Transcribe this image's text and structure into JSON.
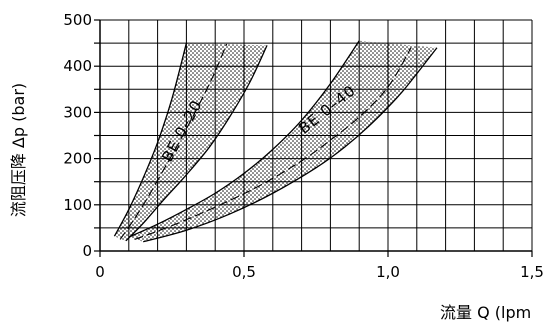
{
  "chart_data": {
    "type": "area",
    "title": "",
    "xlabel": "流量 Q (lpm",
    "ylabel": "流阻压降 Δp (bar)",
    "xlim": [
      0,
      1.5
    ],
    "ylim": [
      0,
      500
    ],
    "x_ticks": [
      0,
      0.1,
      0.2,
      0.3,
      0.4,
      0.5,
      0.6,
      0.7,
      0.8,
      0.9,
      1.0,
      1.1,
      1.2,
      1.3,
      1.4,
      1.5
    ],
    "x_tick_labels": [
      {
        "value": 0,
        "label": "0"
      },
      {
        "value": 0.5,
        "label": "0,5"
      },
      {
        "value": 1.0,
        "label": "1,0"
      },
      {
        "value": 1.5,
        "label": "1,5"
      }
    ],
    "y_ticks": [
      0,
      50,
      100,
      150,
      200,
      250,
      300,
      350,
      400,
      450,
      500
    ],
    "y_tick_labels": [
      {
        "value": 0,
        "label": "0"
      },
      {
        "value": 100,
        "label": "100"
      },
      {
        "value": 200,
        "label": "200"
      },
      {
        "value": 300,
        "label": "300"
      },
      {
        "value": 400,
        "label": "400"
      },
      {
        "value": 500,
        "label": "500"
      }
    ],
    "grid": true,
    "series": [
      {
        "name": "BE 0–20",
        "label_anchor": {
          "x": 0.3,
          "y": 255
        },
        "upper": {
          "x": [
            0.05,
            0.1,
            0.15,
            0.2,
            0.25,
            0.3
          ],
          "y": [
            32,
            90,
            158,
            235,
            330,
            450
          ]
        },
        "middle": {
          "x": [
            0.07,
            0.12,
            0.17,
            0.22,
            0.27,
            0.33,
            0.39,
            0.44
          ],
          "y": [
            25,
            70,
            120,
            175,
            230,
            300,
            375,
            448
          ]
        },
        "lower": {
          "x": [
            0.09,
            0.15,
            0.22,
            0.3,
            0.38,
            0.45,
            0.52,
            0.58
          ],
          "y": [
            22,
            60,
            110,
            165,
            225,
            290,
            365,
            445
          ]
        }
      },
      {
        "name": "BE 0–40",
        "label_anchor": {
          "x": 0.8,
          "y": 298
        },
        "upper": {
          "x": [
            0.1,
            0.2,
            0.3,
            0.4,
            0.5,
            0.6,
            0.7,
            0.8,
            0.9
          ],
          "y": [
            30,
            58,
            90,
            125,
            168,
            220,
            283,
            362,
            455
          ]
        },
        "middle": {
          "x": [
            0.12,
            0.25,
            0.4,
            0.55,
            0.7,
            0.8,
            0.9,
            1.0,
            1.08
          ],
          "y": [
            25,
            55,
            95,
            140,
            195,
            240,
            290,
            355,
            440
          ]
        },
        "lower": {
          "x": [
            0.15,
            0.3,
            0.45,
            0.6,
            0.75,
            0.85,
            0.95,
            1.05,
            1.17
          ],
          "y": [
            20,
            45,
            80,
            125,
            180,
            225,
            280,
            345,
            440
          ]
        }
      }
    ]
  }
}
